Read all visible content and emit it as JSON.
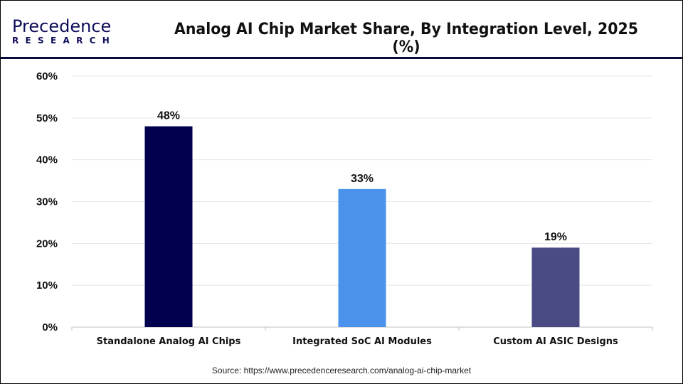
{
  "header": {
    "logo_text_main": "Precedence",
    "logo_text_sub": "RESEARCH",
    "title": "Analog AI Chip Market Share, By Integration Level, 2025 (%)"
  },
  "source": "Source: https://www.precedenceresearch.com/analog-ai-chip-market",
  "chart_data": {
    "type": "bar",
    "title": "Analog AI Chip Market Share, By Integration Level, 2025 (%)",
    "xlabel": "",
    "ylabel": "",
    "categories": [
      "Standalone Analog AI Chips",
      "Integrated SoC AI Modules",
      "Custom AI ASIC Designs"
    ],
    "values": [
      48,
      33,
      19
    ],
    "data_labels": [
      "48%",
      "33%",
      "19%"
    ],
    "colors": [
      "#00004f",
      "#4a92ec",
      "#4a4a85"
    ],
    "ylim": [
      0,
      60
    ],
    "yticks": [
      0,
      10,
      20,
      30,
      40,
      50,
      60
    ],
    "ytick_labels": [
      "0%",
      "10%",
      "20%",
      "30%",
      "40%",
      "50%",
      "60%"
    ],
    "grid": true,
    "legend": "none"
  }
}
